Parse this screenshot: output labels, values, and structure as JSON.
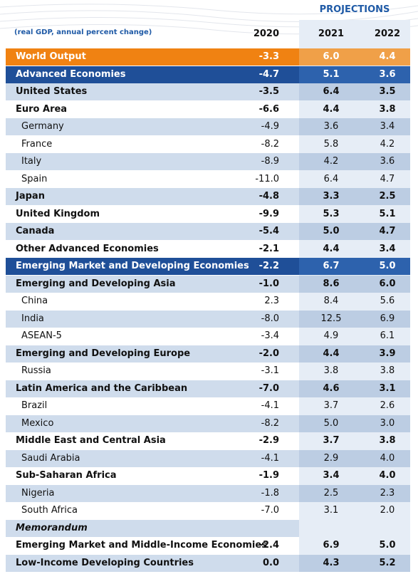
{
  "header": {
    "projections": "PROJECTIONS",
    "subtitle": "(real GDP, annual percent change)",
    "columns": [
      "2020",
      "2021",
      "2022"
    ]
  },
  "table": {
    "rows": [
      [
        "World Output",
        "-3.3",
        "6.0",
        "4.4"
      ],
      [
        "Advanced Economies",
        "-4.7",
        "5.1",
        "3.6"
      ],
      [
        "United States",
        "-3.5",
        "6.4",
        "3.5"
      ],
      [
        "Euro Area",
        "-6.6",
        "4.4",
        "3.8"
      ],
      [
        "Germany",
        "-4.9",
        "3.6",
        "3.4"
      ],
      [
        "France",
        "-8.2",
        "5.8",
        "4.2"
      ],
      [
        "Italy",
        "-8.9",
        "4.2",
        "3.6"
      ],
      [
        "Spain",
        "-11.0",
        "6.4",
        "4.7"
      ],
      [
        "Japan",
        "-4.8",
        "3.3",
        "2.5"
      ],
      [
        "United Kingdom",
        "-9.9",
        "5.3",
        "5.1"
      ],
      [
        "Canada",
        "-5.4",
        "5.0",
        "4.7"
      ],
      [
        "Other Advanced Economies",
        "-2.1",
        "4.4",
        "3.4"
      ],
      [
        "Emerging Market and Developing Economies",
        "-2.2",
        "6.7",
        "5.0"
      ],
      [
        "Emerging and Developing Asia",
        "-1.0",
        "8.6",
        "6.0"
      ],
      [
        "China",
        "2.3",
        "8.4",
        "5.6"
      ],
      [
        "India",
        "-8.0",
        "12.5",
        "6.9"
      ],
      [
        "ASEAN-5",
        "-3.4",
        "4.9",
        "6.1"
      ],
      [
        "Emerging and Developing Europe",
        "-2.0",
        "4.4",
        "3.9"
      ],
      [
        "Russia",
        "-3.1",
        "3.8",
        "3.8"
      ],
      [
        "Latin America and the Caribbean",
        "-7.0",
        "4.6",
        "3.1"
      ],
      [
        "Brazil",
        "-4.1",
        "3.7",
        "2.6"
      ],
      [
        "Mexico",
        "-8.2",
        "5.0",
        "3.0"
      ],
      [
        "Middle East and Central Asia",
        "-2.9",
        "3.7",
        "3.8"
      ],
      [
        "Saudi Arabia",
        "-4.1",
        "2.9",
        "4.0"
      ],
      [
        "Sub-Saharan Africa",
        "-1.9",
        "3.4",
        "4.0"
      ],
      [
        "Nigeria",
        "-1.8",
        "2.5",
        "2.3"
      ],
      [
        "South Africa",
        "-7.0",
        "3.1",
        "2.0"
      ],
      [
        "Memorandum"
      ],
      [
        "Emerging Market and Middle-Income Economies",
        "-2.4",
        "6.9",
        "5.0"
      ],
      [
        "Low-Income Developing Countries",
        "0.0",
        "4.3",
        "5.2"
      ]
    ]
  }
}
